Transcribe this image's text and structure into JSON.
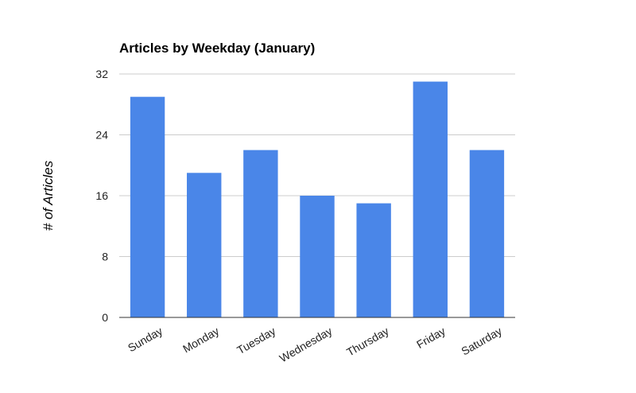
{
  "chart_data": {
    "type": "bar",
    "title": "Articles by Weekday (January)",
    "y_label": "# of Articles",
    "categories": [
      "Sunday",
      "Monday",
      "Tuesday",
      "Wednesday",
      "Thursday",
      "Friday",
      "Saturday"
    ],
    "values": [
      29,
      19,
      22,
      16,
      15,
      31,
      22
    ],
    "color": "#4a86e8",
    "ylim": [
      0,
      32
    ],
    "yticks": [
      0,
      8,
      16,
      24,
      32
    ],
    "grid": true
  }
}
